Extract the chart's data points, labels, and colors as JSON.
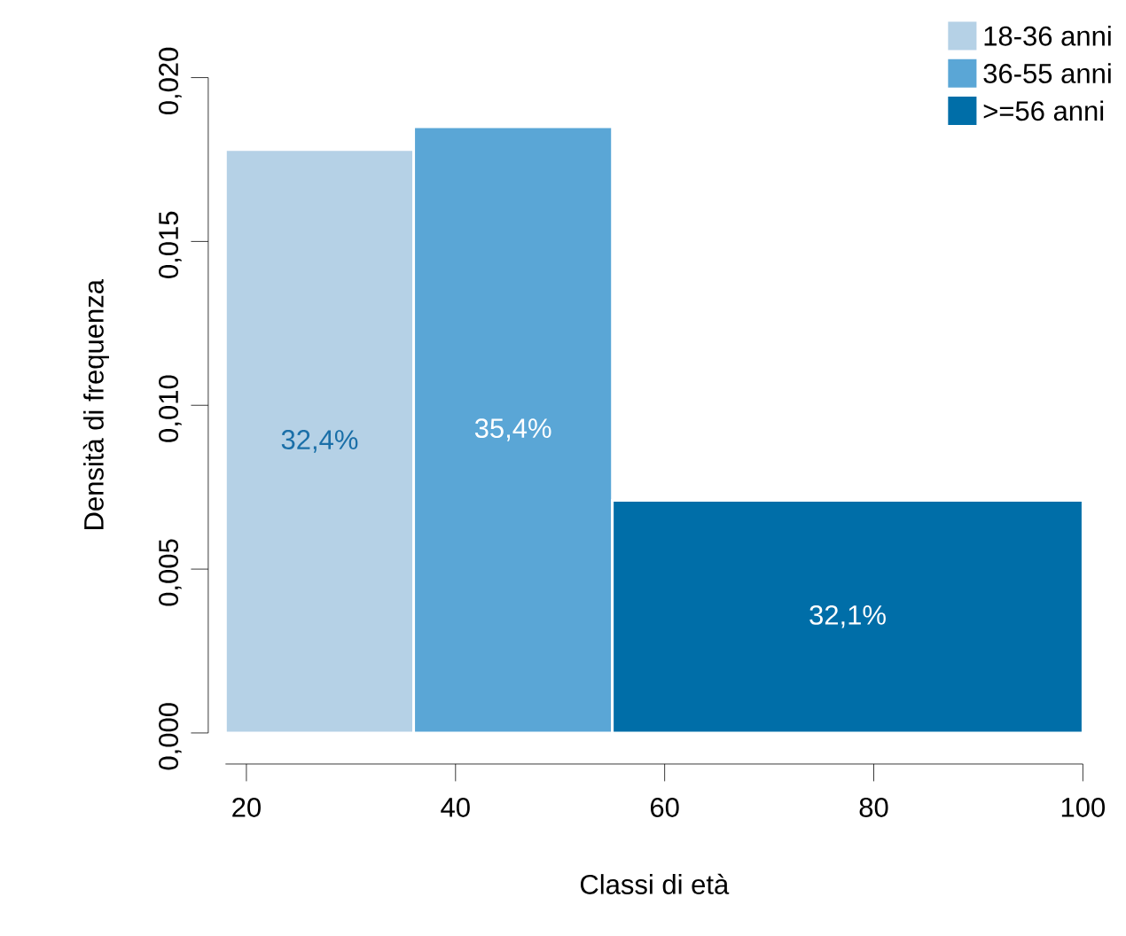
{
  "chart_data": {
    "type": "histogram",
    "xlabel": "Classi di età",
    "ylabel": "Densità di frequenza",
    "bins": [
      18,
      36,
      55,
      100
    ],
    "series": [
      {
        "name": "18-36 anni",
        "color": "#b5d1e6",
        "values": [
          0.0178,
          null,
          null
        ]
      },
      {
        "name": "36-55 anni",
        "color": "#5aa6d6",
        "values": [
          null,
          0.0185,
          null
        ]
      },
      {
        "name": ">=56 anni",
        "color": "#006ea8",
        "values": [
          null,
          null,
          0.0071
        ]
      }
    ],
    "annotations": [
      "32,4%",
      "35,4%",
      "32,1%"
    ],
    "xlim": [
      18,
      100
    ],
    "xticks": [
      20,
      40,
      60,
      80,
      100
    ],
    "ylim": [
      0,
      0.02
    ],
    "yticks": [
      {
        "value": 0,
        "label": "0,000"
      },
      {
        "value": 0.005,
        "label": "0,005"
      },
      {
        "value": 0.01,
        "label": "0,010"
      },
      {
        "value": 0.015,
        "label": "0,015"
      },
      {
        "value": 0.02,
        "label": "0,020"
      }
    ],
    "legend": "top right"
  }
}
